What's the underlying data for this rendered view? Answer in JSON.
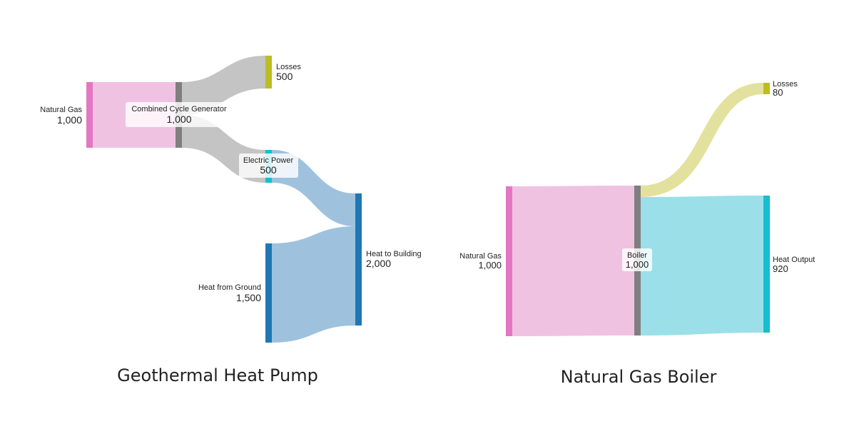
{
  "diagrams": [
    {
      "caption": "Geothermal Heat Pump",
      "nodes": {
        "natural_gas": {
          "label": "Natural Gas",
          "value": "1,000",
          "color": "#e377c2"
        },
        "ccg": {
          "label": "Combined Cycle Generator",
          "value": "1,000",
          "color": "#7f7f7f"
        },
        "losses": {
          "label": "Losses",
          "value": "500",
          "color": "#bcbd22"
        },
        "electric": {
          "label": "Electric Power",
          "value": "500",
          "color": "#17becf"
        },
        "ground": {
          "label": "Heat from Ground",
          "value": "1,500",
          "color": "#1f77b4"
        },
        "building": {
          "label": "Heat to Building",
          "value": "2,000",
          "color": "#1f77b4"
        }
      },
      "links": [
        {
          "source": "Natural Gas",
          "target": "Combined Cycle Generator",
          "value": 1000,
          "color": "#f0c2e2"
        },
        {
          "source": "Combined Cycle Generator",
          "target": "Losses",
          "value": 500,
          "color": "#c4c4c4"
        },
        {
          "source": "Combined Cycle Generator",
          "target": "Electric Power",
          "value": 500,
          "color": "#c4c4c4"
        },
        {
          "source": "Electric Power",
          "target": "Heat to Building",
          "value": 500,
          "color": "#9ec2de"
        },
        {
          "source": "Heat from Ground",
          "target": "Heat to Building",
          "value": 1500,
          "color": "#9ec2de"
        }
      ]
    },
    {
      "caption": "Natural Gas Boiler",
      "nodes": {
        "natural_gas": {
          "label": "Natural Gas",
          "value": "1,000",
          "color": "#e377c2"
        },
        "boiler": {
          "label": "Boiler",
          "value": "1,000",
          "color": "#7f7f7f"
        },
        "losses": {
          "label": "Losses",
          "value": "80",
          "color": "#bcbd22"
        },
        "heat_output": {
          "label": "Heat Output",
          "value": "920",
          "color": "#17becf"
        }
      },
      "links": [
        {
          "source": "Natural Gas",
          "target": "Boiler",
          "value": 1000,
          "color": "#f0c2e2"
        },
        {
          "source": "Boiler",
          "target": "Losses",
          "value": 80,
          "color": "#e2e29e"
        },
        {
          "source": "Boiler",
          "target": "Heat Output",
          "value": 920,
          "color": "#9be0e8"
        }
      ]
    }
  ]
}
